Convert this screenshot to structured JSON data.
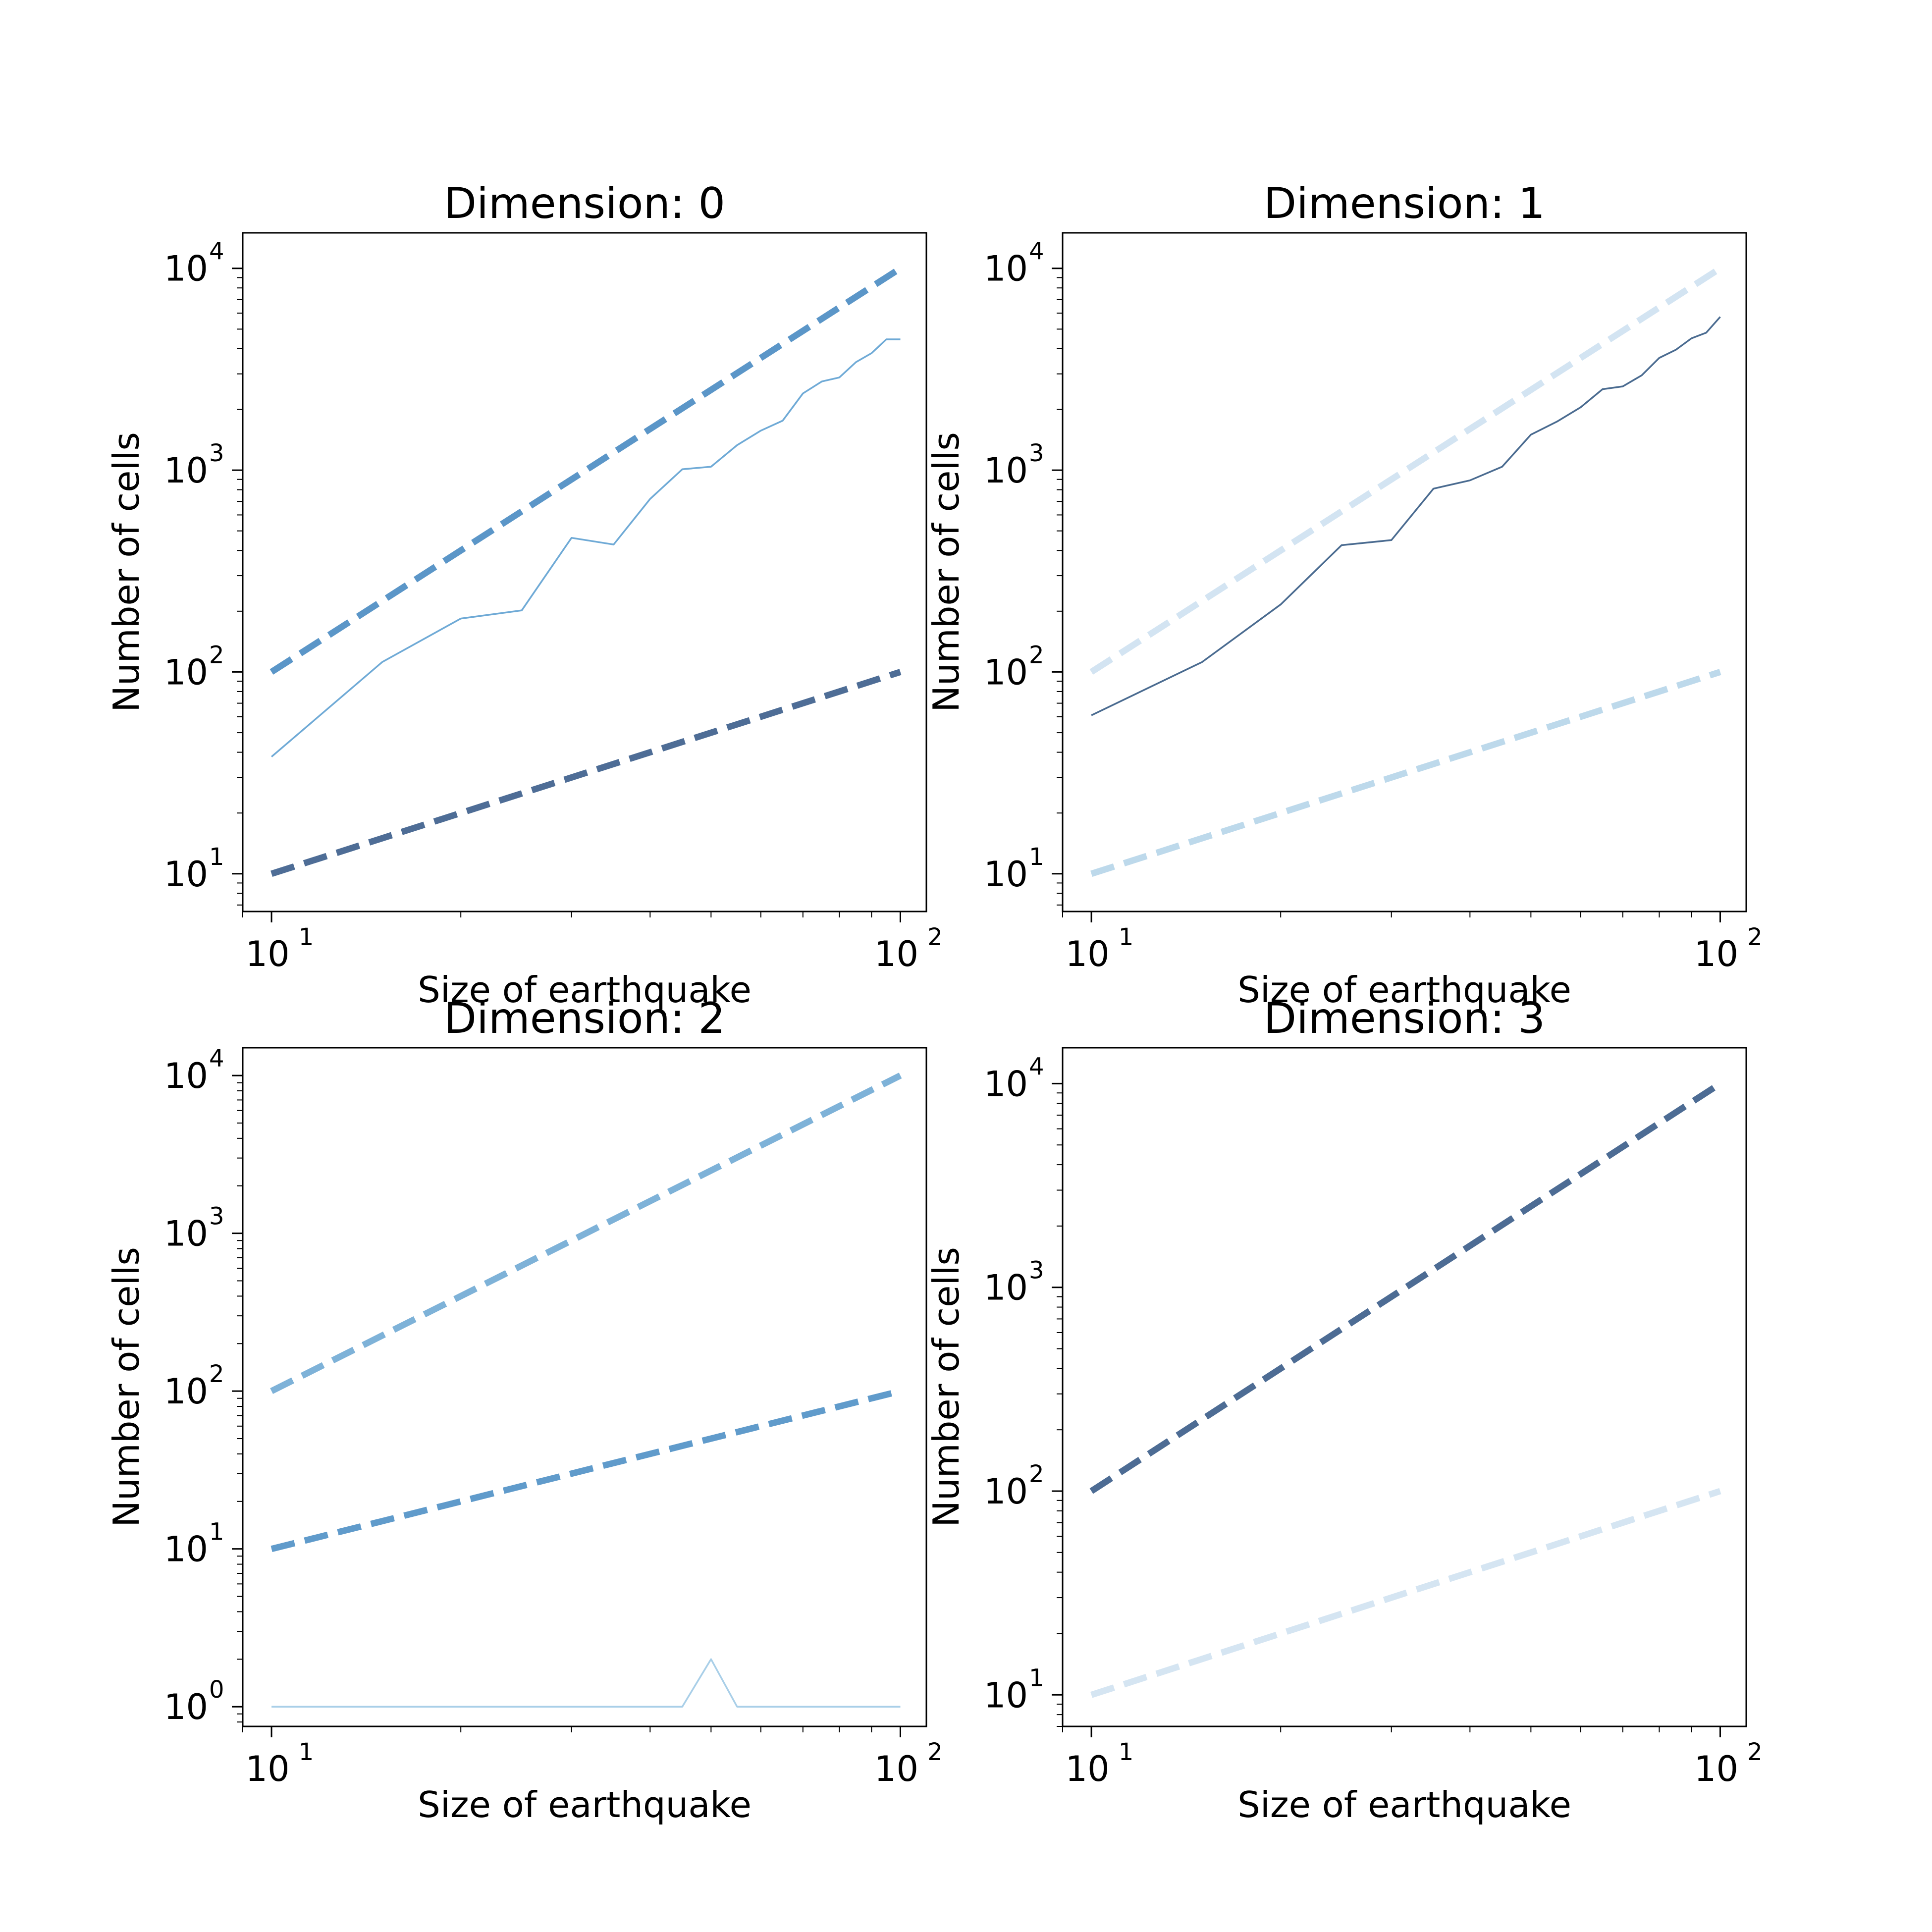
{
  "chart_data": [
    {
      "type": "line",
      "title": "Dimension: 0",
      "xlabel": "Size of earthquake",
      "ylabel": "Number of cells",
      "xscale": "log",
      "yscale": "log",
      "xlim": [
        9,
        110
      ],
      "ylim": [
        6.5,
        15000
      ],
      "x_ticks": [
        {
          "value": 10,
          "label": "10",
          "exp": "1"
        },
        {
          "value": 100,
          "label": "10",
          "exp": "2"
        }
      ],
      "y_ticks": [
        {
          "value": 10,
          "label": "10",
          "exp": "1"
        },
        {
          "value": 100,
          "label": "10",
          "exp": "2"
        },
        {
          "value": 1000,
          "label": "10",
          "exp": "3"
        },
        {
          "value": 10000,
          "label": "10",
          "exp": "4"
        }
      ],
      "grid": false,
      "series": [
        {
          "style": "dashed",
          "color": "#5b96c8",
          "x": [
            10,
            100
          ],
          "y": [
            100,
            10000
          ]
        },
        {
          "style": "dashed",
          "color": "#4e6d96",
          "x": [
            10,
            100
          ],
          "y": [
            10,
            100
          ]
        },
        {
          "style": "solid",
          "color": "#6faad6",
          "x": [
            10,
            15,
            20,
            25,
            30,
            35,
            40,
            45,
            50,
            55,
            60,
            65,
            70,
            75,
            80,
            85,
            90,
            95,
            100
          ],
          "y": [
            38,
            112,
            184,
            202,
            462,
            428,
            720,
            1010,
            1040,
            1330,
            1570,
            1760,
            2400,
            2750,
            2880,
            3430,
            3800,
            4450,
            4450
          ]
        }
      ]
    },
    {
      "type": "line",
      "title": "Dimension: 1",
      "xlabel": "Size of earthquake",
      "ylabel": "Number of cells",
      "xscale": "log",
      "yscale": "log",
      "xlim": [
        9,
        110
      ],
      "ylim": [
        6.5,
        15000
      ],
      "x_ticks": [
        {
          "value": 10,
          "label": "10",
          "exp": "1"
        },
        {
          "value": 100,
          "label": "10",
          "exp": "2"
        }
      ],
      "y_ticks": [
        {
          "value": 10,
          "label": "10",
          "exp": "1"
        },
        {
          "value": 100,
          "label": "10",
          "exp": "2"
        },
        {
          "value": 1000,
          "label": "10",
          "exp": "3"
        },
        {
          "value": 10000,
          "label": "10",
          "exp": "4"
        }
      ],
      "grid": false,
      "series": [
        {
          "style": "dashed",
          "color": "#d3e4f2",
          "x": [
            10,
            100
          ],
          "y": [
            100,
            10000
          ]
        },
        {
          "style": "dashed",
          "color": "#bdd9eb",
          "x": [
            10,
            100
          ],
          "y": [
            10,
            100
          ]
        },
        {
          "style": "solid",
          "color": "#4a6b90",
          "x": [
            10,
            15,
            20,
            25,
            30,
            35,
            40,
            45,
            50,
            55,
            60,
            65,
            70,
            75,
            80,
            85,
            90,
            95,
            100
          ],
          "y": [
            61,
            112,
            216,
            425,
            450,
            810,
            890,
            1040,
            1500,
            1740,
            2050,
            2520,
            2600,
            2950,
            3600,
            3950,
            4500,
            4800,
            5750
          ]
        }
      ]
    },
    {
      "type": "line",
      "title": "Dimension: 2",
      "xlabel": "Size of earthquake",
      "ylabel": "Number of cells",
      "xscale": "log",
      "yscale": "log",
      "xlim": [
        9,
        110
      ],
      "ylim": [
        0.75,
        15000
      ],
      "x_ticks": [
        {
          "value": 10,
          "label": "10",
          "exp": "1"
        },
        {
          "value": 100,
          "label": "10",
          "exp": "2"
        }
      ],
      "y_ticks": [
        {
          "value": 1,
          "label": "10",
          "exp": "0"
        },
        {
          "value": 10,
          "label": "10",
          "exp": "1"
        },
        {
          "value": 100,
          "label": "10",
          "exp": "2"
        },
        {
          "value": 1000,
          "label": "10",
          "exp": "3"
        },
        {
          "value": 10000,
          "label": "10",
          "exp": "4"
        }
      ],
      "grid": false,
      "series": [
        {
          "style": "dashed",
          "color": "#7eb2d8",
          "x": [
            10,
            100
          ],
          "y": [
            100,
            10000
          ]
        },
        {
          "style": "dashed",
          "color": "#609bcb",
          "x": [
            10,
            100
          ],
          "y": [
            10,
            100
          ]
        },
        {
          "style": "solid",
          "color": "#a9cfe8",
          "x": [
            10,
            15,
            20,
            25,
            30,
            35,
            40,
            45,
            50,
            55,
            60,
            65,
            70,
            75,
            80,
            85,
            90,
            95,
            100
          ],
          "y": [
            1,
            1,
            1,
            1,
            1,
            1,
            1,
            1,
            2,
            1,
            1,
            1,
            1,
            1,
            1,
            1,
            1,
            1,
            1
          ]
        }
      ]
    },
    {
      "type": "line",
      "title": "Dimension: 3",
      "xlabel": "Size of earthquake",
      "ylabel": "Number of cells",
      "xscale": "log",
      "yscale": "log",
      "xlim": [
        9,
        110
      ],
      "ylim": [
        7.0,
        15000
      ],
      "x_ticks": [
        {
          "value": 10,
          "label": "10",
          "exp": "1"
        },
        {
          "value": 100,
          "label": "10",
          "exp": "2"
        }
      ],
      "y_ticks": [
        {
          "value": 10,
          "label": "10",
          "exp": "1"
        },
        {
          "value": 100,
          "label": "10",
          "exp": "2"
        },
        {
          "value": 1000,
          "label": "10",
          "exp": "3"
        },
        {
          "value": 10000,
          "label": "10",
          "exp": "4"
        }
      ],
      "grid": false,
      "series": [
        {
          "style": "dashed",
          "color": "#4d6c94",
          "x": [
            10,
            100
          ],
          "y": [
            100,
            10000
          ]
        },
        {
          "style": "dashed",
          "color": "#d5e5f2",
          "x": [
            10,
            100
          ],
          "y": [
            10,
            100
          ]
        }
      ]
    }
  ]
}
